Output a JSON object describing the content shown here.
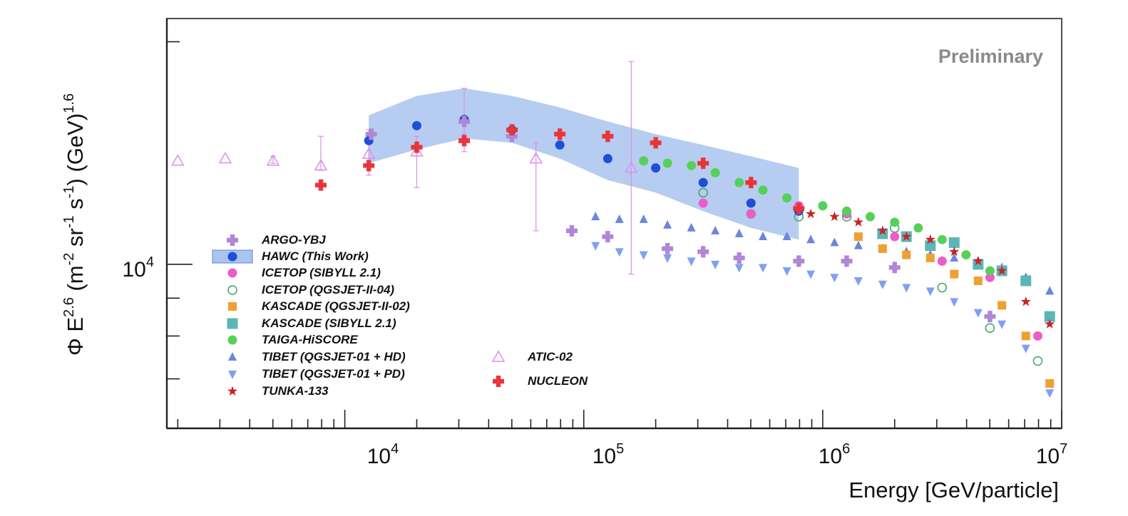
{
  "chart_data": {
    "type": "scatter",
    "title": "",
    "annotation": "Preliminary",
    "xlabel": "Energy [GeV/particle]",
    "ylabel": {
      "base": "Φ E",
      "e1": "2.6",
      "mid1": " (m",
      "e2": "-2",
      "mid2": " sr",
      "e3": "-1",
      "mid3": " s",
      "e4": "-1",
      "mid4": ") (GeV)",
      "e5": "1.6"
    },
    "xscale": "log",
    "yscale": "log",
    "xlim": [
      1800,
      10000000
    ],
    "ylim": [
      6000,
      21500
    ],
    "x_tick_labels": [
      {
        "value": 10000,
        "base": "10",
        "exp": "4"
      },
      {
        "value": 100000,
        "base": "10",
        "exp": "5"
      },
      {
        "value": 1000000,
        "base": "10",
        "exp": "6"
      },
      {
        "value": 10000000,
        "base": "10",
        "exp": "7"
      }
    ],
    "y_tick_labels": [
      {
        "value": 10000,
        "base": "10",
        "exp": "4"
      }
    ],
    "series": [
      {
        "name": "ARGO-YBJ",
        "marker": "plus",
        "color": "#b186d6",
        "x": [
          12900,
          31600,
          50000,
          89100,
          126000,
          224000,
          316000,
          447000,
          794000,
          1260000,
          2000000,
          5010000
        ],
        "y": [
          15000,
          15600,
          14900,
          11100,
          10900,
          10500,
          10400,
          10200,
          10100,
          10100,
          9900,
          8500
        ]
      },
      {
        "name": "HAWC (This Work)",
        "marker": "circle",
        "color": "#1f4fd6",
        "band_color": "#a9c4ee",
        "x": [
          12600,
          20000,
          31600,
          50100,
          79400,
          126000,
          200000,
          316000,
          501000,
          794000
        ],
        "y": [
          14700,
          15400,
          15700,
          15200,
          14500,
          13900,
          13500,
          12900,
          12100,
          11800
        ],
        "band_upper": [
          15900,
          16900,
          17300,
          16900,
          16300,
          15600,
          15000,
          14500,
          14000,
          13500
        ],
        "band_lower": [
          13700,
          14300,
          14800,
          14600,
          13900,
          13000,
          12500,
          11800,
          11200,
          10800
        ]
      },
      {
        "name": "ICETOP (SIBYLL 2.1)",
        "marker": "circle",
        "color": "#ee5cc8",
        "x": [
          316000,
          501000,
          794000,
          1260000,
          2000000,
          3160000,
          5010000,
          7940000
        ],
        "y": [
          12100,
          11700,
          12000,
          11700,
          10900,
          10100,
          9600,
          8000
        ]
      },
      {
        "name": "ICETOP (QGSJET-II-04)",
        "marker": "ocircle",
        "color": "#3aa56a",
        "x": [
          316000,
          501000,
          794000,
          1260000,
          2000000,
          3160000,
          5010000,
          7940000
        ],
        "y": [
          12500,
          11700,
          11600,
          11600,
          11200,
          9300,
          8200,
          7400
        ]
      },
      {
        "name": "KASCADE (QGSJET-II-02)",
        "marker": "square",
        "color": "#f0a030",
        "x": [
          1410000,
          1780000,
          2240000,
          2820000,
          3550000,
          4470000,
          5620000,
          7080000,
          8910000
        ],
        "y": [
          10900,
          10500,
          10300,
          10200,
          9700,
          9500,
          8800,
          8000,
          6900
        ]
      },
      {
        "name": "KASCADE (SIBYLL 2.1)",
        "marker": "bsquare",
        "color": "#5cb6b6",
        "x": [
          1780000,
          2240000,
          2820000,
          3550000,
          4470000,
          5620000,
          7080000,
          8910000
        ],
        "y": [
          11000,
          10900,
          10600,
          10700,
          10000,
          9800,
          9500,
          8500
        ]
      },
      {
        "name": "TAIGA-HiSCORE",
        "marker": "circle",
        "color": "#57d05a",
        "x": [
          178000,
          224000,
          282000,
          355000,
          447000,
          562000,
          708000,
          1000000,
          1260000,
          1580000,
          2000000,
          2510000,
          3160000,
          3980000,
          5010000
        ],
        "y": [
          13800,
          13700,
          13600,
          13300,
          12900,
          12600,
          12300,
          12000,
          11800,
          11600,
          11400,
          11200,
          10800,
          10300,
          9800
        ]
      },
      {
        "name": "TIBET (QGSJET-01 + HD)",
        "marker": "triangle",
        "color": "#6b86dc",
        "x": [
          112000,
          141000,
          178000,
          224000,
          282000,
          355000,
          447000,
          562000,
          708000,
          891000,
          1120000,
          1410000,
          1780000,
          2240000,
          2820000,
          3550000,
          4470000,
          5620000,
          7080000,
          8910000
        ],
        "y": [
          11600,
          11500,
          11500,
          11300,
          11200,
          11100,
          11000,
          10900,
          10900,
          10800,
          10700,
          10600,
          10500,
          10400,
          10300,
          10200,
          10100,
          9900,
          9600,
          9200
        ]
      },
      {
        "name": "TIBET (QGSJET-01 + PD)",
        "marker": "dtriangle",
        "color": "#7fa0f2",
        "x": [
          112000,
          141000,
          178000,
          224000,
          282000,
          355000,
          447000,
          562000,
          708000,
          891000,
          1120000,
          1410000,
          1780000,
          2240000,
          2820000,
          3550000,
          4470000,
          5620000,
          7080000,
          8910000
        ],
        "y": [
          10600,
          10400,
          10300,
          10200,
          10100,
          10000,
          9900,
          9900,
          9800,
          9700,
          9600,
          9500,
          9400,
          9300,
          9200,
          8900,
          8600,
          8300,
          7700,
          6700
        ]
      },
      {
        "name": "TUNKA-133",
        "marker": "star",
        "color": "#c8242a",
        "x": [
          891000,
          1120000,
          1410000,
          1780000,
          2240000,
          2820000,
          3550000,
          4470000,
          5620000,
          7080000,
          8910000
        ],
        "y": [
          11700,
          11600,
          11400,
          11100,
          10900,
          10800,
          10400,
          10100,
          9800,
          8900,
          8300
        ]
      },
      {
        "name": "ATIC-02",
        "marker": "otriangle",
        "color": "#dd8ee8",
        "x": [
          2000,
          3160,
          5010,
          7940,
          12600,
          20000,
          31600,
          63100,
          158000
        ],
        "y": [
          13800,
          13900,
          13800,
          13600,
          14100,
          14200,
          14800,
          13900,
          13500
        ],
        "err_low": [
          13800,
          13900,
          13700,
          13400,
          13200,
          12700,
          14200,
          11100,
          9700
        ],
        "err_high": [
          13800,
          13900,
          14000,
          14900,
          15200,
          14900,
          17300,
          14600,
          18800
        ]
      },
      {
        "name": "NUCLEON",
        "marker": "plus",
        "color": "#e8353a",
        "x": [
          7940,
          12600,
          20000,
          31600,
          50100,
          79400,
          126000,
          200000,
          316000,
          501000,
          794000
        ],
        "y": [
          12800,
          13600,
          14400,
          14700,
          15200,
          15000,
          14900,
          14600,
          13700,
          12900,
          11900
        ]
      }
    ]
  }
}
